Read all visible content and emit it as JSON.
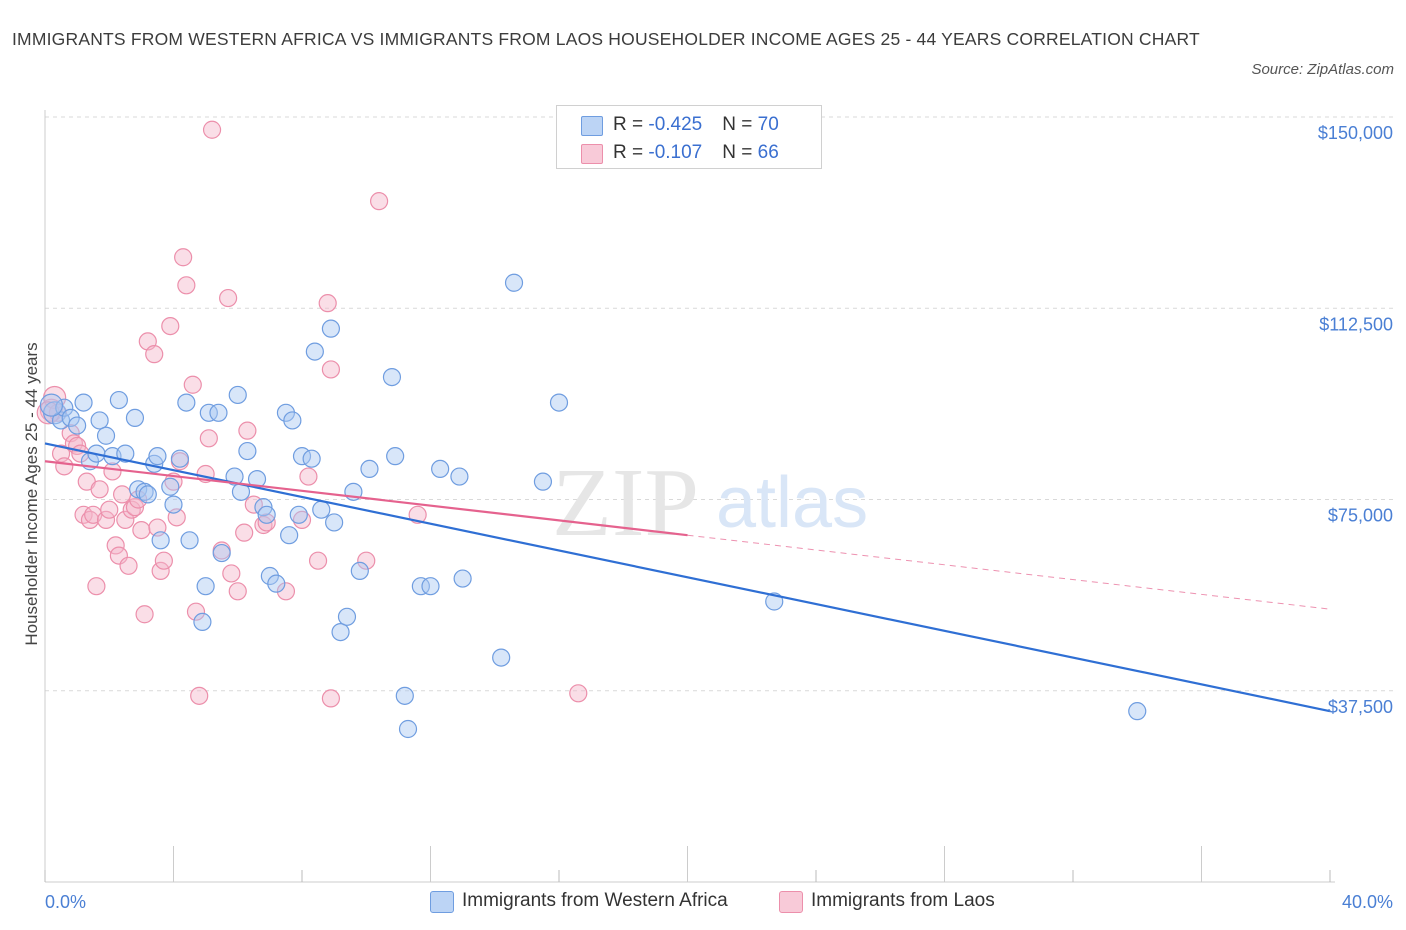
{
  "title": "IMMIGRANTS FROM WESTERN AFRICA VS IMMIGRANTS FROM LAOS HOUSEHOLDER INCOME AGES 25 - 44 YEARS CORRELATION CHART",
  "source": "Source: ZipAtlas.com",
  "watermark": {
    "zip": "ZIP",
    "atlas": "atlas"
  },
  "legend": {
    "rows": [
      {
        "r_label": "R = ",
        "r_value": "-0.425",
        "n_label": "N = ",
        "n_value": "70",
        "color": "#a9c7f2"
      },
      {
        "r_label": "R = ",
        "r_value": "-0.107",
        "n_label": "N = ",
        "n_value": "66",
        "color": "#f4b6c9"
      }
    ]
  },
  "bottom_legend": [
    {
      "label": "Immigrants from Western Africa",
      "color": "#a9c7f2"
    },
    {
      "label": "Immigrants from Laos",
      "color": "#f4b6c9"
    }
  ],
  "colors": {
    "blue_fill": "#a9c7f2",
    "blue_stroke": "#6f9de0",
    "blue_line": "#2f6fd4",
    "pink_fill": "#f4b6c9",
    "pink_stroke": "#ec8fab",
    "pink_line": "#e5628e",
    "grid": "#d9d9d9",
    "tick_text": "#4a7fd4"
  },
  "chart_data": {
    "type": "scatter",
    "title": "IMMIGRANTS FROM WESTERN AFRICA VS IMMIGRANTS FROM LAOS HOUSEHOLDER INCOME AGES 25 - 44 YEARS CORRELATION CHART",
    "xlabel": "",
    "ylabel": "Householder Income Ages 25 - 44 years",
    "xlim": [
      0,
      40
    ],
    "ylim": [
      0,
      150000
    ],
    "x_tick_labels": [
      "0.0%",
      "40.0%"
    ],
    "y_ticks": [
      37500,
      75000,
      112500,
      150000
    ],
    "y_tick_labels": [
      "$37,500",
      "$75,000",
      "$112,500",
      "$150,000"
    ],
    "grid": true,
    "series": [
      {
        "name": "Immigrants from Western Africa",
        "trend": {
          "x": [
            0,
            40
          ],
          "y": [
            86000,
            33500
          ],
          "dashed_from": null
        },
        "points": [
          [
            0.3,
            92000
          ],
          [
            0.5,
            90500
          ],
          [
            0.6,
            93000
          ],
          [
            0.8,
            91000
          ],
          [
            1.0,
            89500
          ],
          [
            1.2,
            94000
          ],
          [
            1.4,
            82500
          ],
          [
            1.6,
            84000
          ],
          [
            1.7,
            90500
          ],
          [
            1.9,
            87500
          ],
          [
            2.1,
            83500
          ],
          [
            2.3,
            94500
          ],
          [
            2.5,
            84000
          ],
          [
            2.8,
            91000
          ],
          [
            2.9,
            77000
          ],
          [
            3.1,
            76500
          ],
          [
            3.2,
            76000
          ],
          [
            3.4,
            82000
          ],
          [
            3.5,
            83500
          ],
          [
            3.6,
            67000
          ],
          [
            3.9,
            77500
          ],
          [
            4.0,
            74000
          ],
          [
            4.2,
            83000
          ],
          [
            4.4,
            94000
          ],
          [
            4.5,
            67000
          ],
          [
            4.9,
            51000
          ],
          [
            5.0,
            58000
          ],
          [
            5.1,
            92000
          ],
          [
            5.4,
            92000
          ],
          [
            5.5,
            64500
          ],
          [
            5.9,
            79500
          ],
          [
            6.0,
            95500
          ],
          [
            6.1,
            76500
          ],
          [
            6.3,
            84500
          ],
          [
            6.6,
            79000
          ],
          [
            6.8,
            73500
          ],
          [
            6.9,
            72000
          ],
          [
            7.0,
            60000
          ],
          [
            7.2,
            58500
          ],
          [
            7.5,
            92000
          ],
          [
            7.6,
            68000
          ],
          [
            7.7,
            90500
          ],
          [
            7.9,
            72000
          ],
          [
            8.0,
            83500
          ],
          [
            8.3,
            83000
          ],
          [
            8.4,
            104000
          ],
          [
            8.6,
            73000
          ],
          [
            8.9,
            108500
          ],
          [
            9.0,
            70500
          ],
          [
            9.2,
            49000
          ],
          [
            9.4,
            52000
          ],
          [
            9.6,
            76500
          ],
          [
            9.8,
            61000
          ],
          [
            10.1,
            81000
          ],
          [
            10.8,
            99000
          ],
          [
            10.9,
            83500
          ],
          [
            11.2,
            36500
          ],
          [
            11.3,
            30000
          ],
          [
            11.7,
            58000
          ],
          [
            12.0,
            58000
          ],
          [
            12.3,
            81000
          ],
          [
            12.9,
            79500
          ],
          [
            13.0,
            59500
          ],
          [
            14.2,
            44000
          ],
          [
            14.6,
            117500
          ],
          [
            15.5,
            78500
          ],
          [
            16.0,
            94000
          ],
          [
            22.7,
            55000
          ],
          [
            34.0,
            33500
          ],
          [
            0.2,
            93500
          ]
        ]
      },
      {
        "name": "Immigrants from Laos",
        "trend": {
          "x": [
            0,
            40
          ],
          "y": [
            82500,
            53500
          ],
          "dashed_from": 20
        },
        "points": [
          [
            0.2,
            92500
          ],
          [
            0.3,
            95000
          ],
          [
            0.4,
            92000
          ],
          [
            0.5,
            84000
          ],
          [
            0.6,
            81500
          ],
          [
            0.8,
            88000
          ],
          [
            0.9,
            86000
          ],
          [
            1.0,
            85500
          ],
          [
            1.1,
            84000
          ],
          [
            1.2,
            72000
          ],
          [
            1.3,
            78500
          ],
          [
            1.4,
            71000
          ],
          [
            1.5,
            72000
          ],
          [
            1.6,
            58000
          ],
          [
            1.7,
            77000
          ],
          [
            1.9,
            71000
          ],
          [
            2.0,
            73000
          ],
          [
            2.1,
            80500
          ],
          [
            2.2,
            66000
          ],
          [
            2.3,
            64000
          ],
          [
            2.4,
            76000
          ],
          [
            2.5,
            71000
          ],
          [
            2.6,
            62000
          ],
          [
            2.7,
            73000
          ],
          [
            2.8,
            73500
          ],
          [
            2.9,
            75000
          ],
          [
            3.0,
            69000
          ],
          [
            3.1,
            52500
          ],
          [
            3.2,
            106000
          ],
          [
            3.4,
            103500
          ],
          [
            3.5,
            69500
          ],
          [
            3.6,
            61000
          ],
          [
            3.7,
            63000
          ],
          [
            3.9,
            109000
          ],
          [
            4.0,
            78500
          ],
          [
            4.1,
            71500
          ],
          [
            4.2,
            82500
          ],
          [
            4.3,
            122500
          ],
          [
            4.4,
            117000
          ],
          [
            4.6,
            97500
          ],
          [
            4.7,
            53000
          ],
          [
            4.8,
            36500
          ],
          [
            5.0,
            80000
          ],
          [
            5.1,
            87000
          ],
          [
            5.2,
            147500
          ],
          [
            5.5,
            65000
          ],
          [
            5.7,
            114500
          ],
          [
            5.8,
            60500
          ],
          [
            6.0,
            57000
          ],
          [
            6.2,
            68500
          ],
          [
            6.3,
            88500
          ],
          [
            6.5,
            74000
          ],
          [
            6.8,
            70000
          ],
          [
            6.9,
            70500
          ],
          [
            7.5,
            57000
          ],
          [
            8.0,
            71000
          ],
          [
            8.2,
            79500
          ],
          [
            8.5,
            63000
          ],
          [
            8.8,
            113500
          ],
          [
            8.9,
            100500
          ],
          [
            8.9,
            36000
          ],
          [
            10.0,
            63000
          ],
          [
            10.4,
            133500
          ],
          [
            11.6,
            72000
          ],
          [
            16.6,
            37000
          ],
          [
            0.1,
            92000
          ]
        ]
      }
    ]
  }
}
